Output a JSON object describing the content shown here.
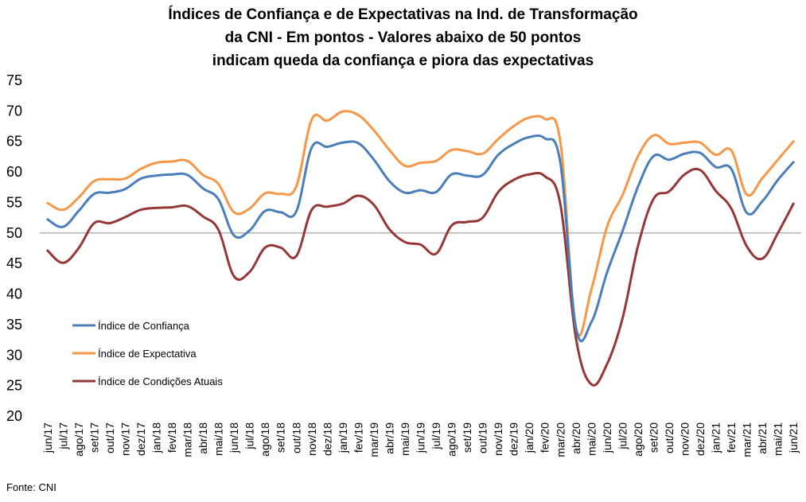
{
  "chart_data": {
    "type": "line",
    "title_lines": [
      "Índices de Confiança e de Expectativas na Ind. de Transformação",
      "da CNI - Em pontos - Valores abaixo de 50 pontos",
      "indicam queda da confiança e piora das expectativas"
    ],
    "xlabel": "",
    "ylabel": "",
    "ylim": [
      20,
      75
    ],
    "yticks": [
      20,
      25,
      30,
      35,
      40,
      45,
      50,
      55,
      60,
      65,
      70,
      75
    ],
    "reference_line": 50,
    "grid": false,
    "legend_position": "lower-left",
    "categories": [
      "jun/17",
      "jul/17",
      "ago/17",
      "set/17",
      "out/17",
      "nov/17",
      "dez/17",
      "jan/18",
      "fev/18",
      "mar/18",
      "abr/18",
      "mai/18",
      "jun/18",
      "jul/18",
      "ago/18",
      "set/18",
      "out/18",
      "nov/18",
      "dez/18",
      "jan/19",
      "fev/19",
      "mar/19",
      "abr/19",
      "mai/19",
      "jun/19",
      "jul/19",
      "ago/19",
      "set/19",
      "out/19",
      "nov/19",
      "dez/19",
      "jan/20",
      "fev/20",
      "mar/20",
      "abr/20",
      "mai/20",
      "jun/20",
      "jul/20",
      "ago/20",
      "set/20",
      "out/20",
      "nov/20",
      "dez/20",
      "jan/21",
      "fev/21",
      "mar/21",
      "abr/21",
      "mai/21",
      "jun/21"
    ],
    "series": [
      {
        "name": "Índice de Confiança",
        "color": "#4a7ebb",
        "values": [
          52.2,
          51.0,
          53.6,
          56.4,
          56.6,
          57.2,
          58.9,
          59.4,
          59.6,
          59.5,
          57.3,
          55.5,
          49.6,
          50.4,
          53.6,
          53.4,
          53.5,
          64.0,
          64.1,
          64.8,
          64.7,
          62.0,
          58.5,
          56.6,
          57.0,
          56.7,
          59.6,
          59.4,
          59.5,
          62.8,
          64.6,
          65.7,
          65.5,
          61.5,
          34.5,
          35.4,
          43.5,
          50.3,
          57.6,
          62.6,
          62.0,
          63.0,
          63.1,
          60.8,
          60.5,
          53.3,
          55.2,
          58.7,
          61.6
        ]
      },
      {
        "name": "Índice de Expectativa",
        "color": "#f79646",
        "values": [
          54.9,
          53.8,
          55.8,
          58.5,
          58.8,
          58.9,
          60.5,
          61.5,
          61.7,
          61.8,
          59.5,
          58.0,
          53.4,
          54.0,
          56.5,
          56.4,
          57.6,
          68.6,
          68.4,
          69.9,
          69.3,
          66.8,
          63.6,
          61.0,
          61.5,
          61.8,
          63.6,
          63.4,
          63.0,
          65.4,
          67.5,
          68.9,
          68.7,
          64.9,
          34.5,
          40.8,
          51.0,
          56.2,
          62.6,
          66.0,
          64.6,
          64.8,
          64.8,
          62.8,
          63.5,
          56.3,
          59.0,
          62.0,
          65.0
        ]
      },
      {
        "name": "Índice de Condições Atuais",
        "color": "#953735",
        "values": [
          47.1,
          45.1,
          47.5,
          51.6,
          51.6,
          52.6,
          53.8,
          54.1,
          54.2,
          54.4,
          52.7,
          50.5,
          42.9,
          43.6,
          47.6,
          47.6,
          46.2,
          53.8,
          54.3,
          54.8,
          56.1,
          54.6,
          50.6,
          48.5,
          48.1,
          46.6,
          51.2,
          51.8,
          52.5,
          56.7,
          58.7,
          59.6,
          59.3,
          54.7,
          32.8,
          25.2,
          28.5,
          36.0,
          47.9,
          55.6,
          56.8,
          59.6,
          60.3,
          56.9,
          54.0,
          47.8,
          45.8,
          50.0,
          54.8
        ]
      }
    ]
  },
  "source_note": "Fonte: CNI"
}
